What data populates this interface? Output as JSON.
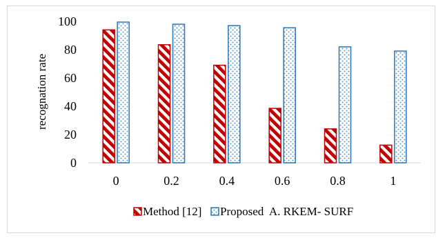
{
  "chart_data": {
    "type": "bar",
    "title": "",
    "xlabel": "",
    "ylabel": "recognation rate",
    "ylim": [
      0,
      100
    ],
    "yticks": [
      0,
      20,
      40,
      60,
      80,
      100
    ],
    "categories": [
      "0",
      "0.2",
      "0.4",
      "0.6",
      "0.8",
      "1"
    ],
    "grid": false,
    "legend_position": "bottom",
    "series": [
      {
        "name": "Method [12]",
        "values": [
          94,
          83.5,
          69,
          38.5,
          24,
          12.5
        ],
        "color": "#c00000",
        "pattern": "diagonal-stripes"
      },
      {
        "name": "Proposed  A. RKEM- SURF",
        "values": [
          99.5,
          98,
          97,
          95.5,
          82,
          79
        ],
        "color": "#2e75b6",
        "pattern": "dots"
      }
    ]
  }
}
